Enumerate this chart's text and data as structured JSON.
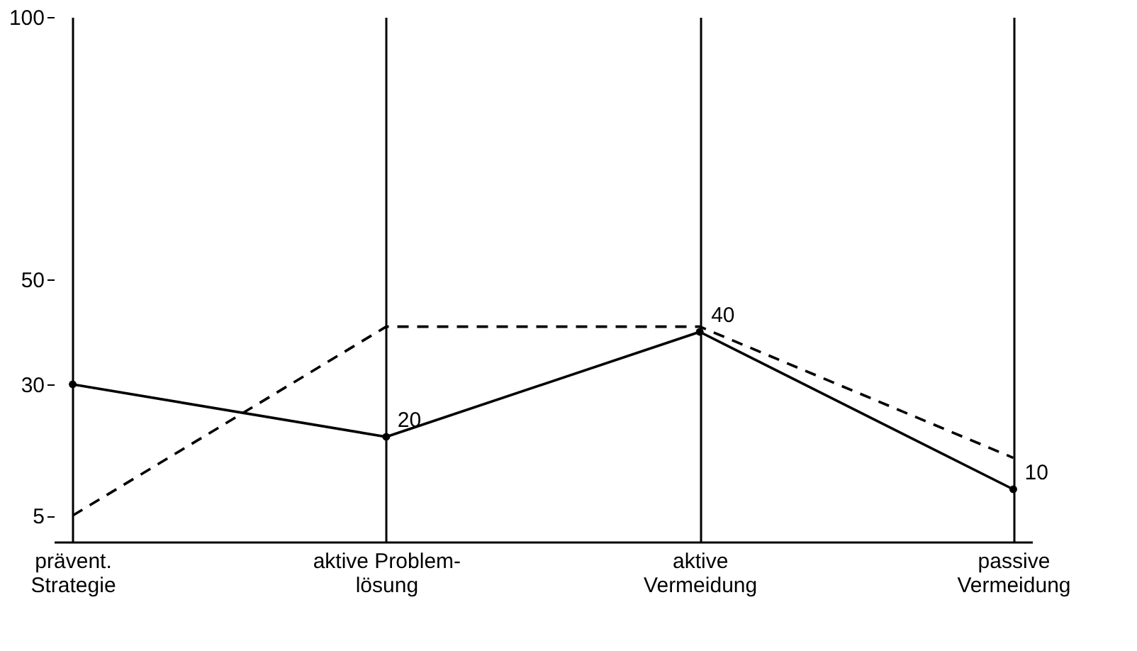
{
  "chart_data": {
    "type": "line",
    "categories": [
      "prävent.\nStrategie",
      "aktive Problem-\nlösung",
      "aktive\nVermeidung",
      "passive\nVermeidung"
    ],
    "series": [
      {
        "color": "#000000",
        "values": [
          30,
          20,
          40,
          10
        ],
        "line_style": "solid",
        "marker": "circle",
        "value_labels": [
          null,
          "20",
          "40",
          "10"
        ]
      },
      {
        "color": "#000000",
        "values": [
          5,
          41,
          41,
          16
        ],
        "line_style": "dashed",
        "marker": "none"
      }
    ],
    "ylim": [
      0,
      100
    ],
    "yticks": [
      5,
      30,
      50,
      100
    ],
    "grid": "x"
  }
}
